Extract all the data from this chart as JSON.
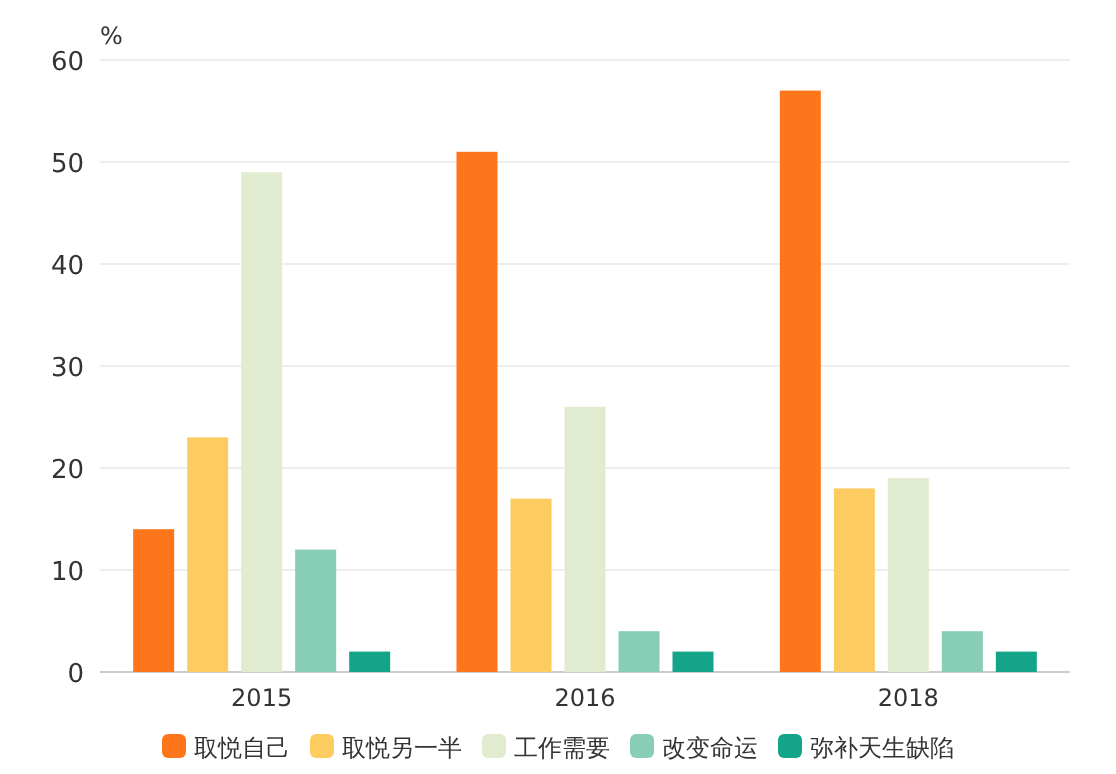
{
  "chart_data": {
    "type": "bar",
    "ylabel": "%",
    "categories": [
      "2015",
      "2016",
      "2018"
    ],
    "series": [
      {
        "name": "取悦自己",
        "color": "#fd761b",
        "values": [
          14,
          51,
          57
        ]
      },
      {
        "name": "取悦另一半",
        "color": "#fccc60",
        "values": [
          23,
          17,
          18
        ]
      },
      {
        "name": "工作需要",
        "color": "#e1ebd0",
        "values": [
          49,
          26,
          19
        ]
      },
      {
        "name": "改变命运",
        "color": "#88cdb6",
        "values": [
          12,
          4,
          4
        ]
      },
      {
        "name": "弥补天生缺陷",
        "color": "#13a48a",
        "values": [
          2,
          2,
          2
        ]
      }
    ],
    "ylim": [
      0,
      60
    ],
    "yticks": [
      0,
      10,
      20,
      30,
      40,
      50,
      60
    ],
    "grid": "y",
    "legend": "bottom"
  }
}
